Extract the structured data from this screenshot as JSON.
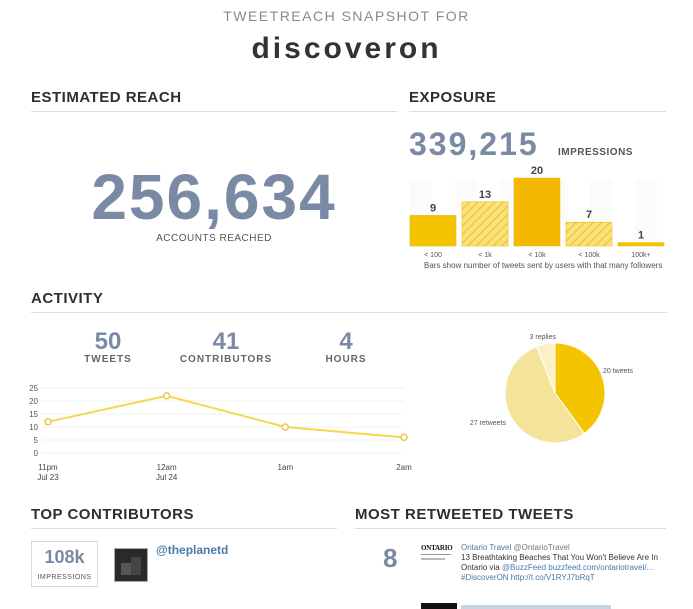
{
  "header": {
    "kicker": "TWEETREACH SNAPSHOT FOR",
    "title": "discoveron"
  },
  "reach": {
    "heading": "ESTIMATED REACH",
    "value": "256,634",
    "label": "ACCOUNTS REACHED"
  },
  "exposure": {
    "heading": "EXPOSURE",
    "value": "339,215",
    "label": "IMPRESSIONS",
    "caption": "Bars show number of tweets sent by users with that many followers"
  },
  "activity": {
    "heading": "ACTIVITY",
    "tweets": {
      "value": "50",
      "label": "TWEETS"
    },
    "contributors": {
      "value": "41",
      "label": "CONTRIBUTORS"
    },
    "hours": {
      "value": "4",
      "label": "HOURS"
    }
  },
  "top_contributors": {
    "heading": "TOP CONTRIBUTORS",
    "items": [
      {
        "impressions": "108k",
        "impressions_label": "IMPRESSIONS",
        "handle": "@theplanetd"
      }
    ]
  },
  "most_retweeted": {
    "heading": "MOST RETWEETED TWEETS",
    "items": [
      {
        "count": "8",
        "logo_text": "ONTARIO",
        "author": "Ontario Travel",
        "handle": "@OntarioTravel",
        "line1": "13 Breathtaking Beaches That You Won't Believe Are In",
        "line2_prefix": "Ontario via ",
        "line2_mention": "@BuzzFeed",
        "line2_link": " buzzfeed.com/ontariotravel/...",
        "line3_hashtag": "#DiscoverON",
        "line3_link": " http://t.co/V1RYJ7bRqT"
      }
    ]
  },
  "colors": {
    "accent_number": "#7a8aa5",
    "bar_yellow": "#f5c400",
    "line_yellow": "#f6d651",
    "pie_light": "#f6e39a"
  },
  "chart_data": [
    {
      "type": "bar",
      "categories": [
        "< 100",
        "< 1k",
        "< 10k",
        "< 100k",
        "100k+"
      ],
      "values": [
        9,
        13,
        20,
        7,
        1
      ],
      "xlabel": "Bars show number of tweets sent by users with that many followers",
      "ylabel": "",
      "ylim": [
        0,
        20
      ],
      "grid": false
    },
    {
      "type": "line",
      "x": [
        "11pm",
        "12am",
        "1am",
        "2am"
      ],
      "x_sublabels": [
        "Jul 23",
        "Jul 24",
        "",
        ""
      ],
      "values": [
        12,
        22,
        10,
        6
      ],
      "y_ticks": [
        0,
        5,
        10,
        15,
        20,
        25
      ],
      "ylim": [
        0,
        25
      ],
      "grid": true
    },
    {
      "type": "pie",
      "labels": [
        "20 tweets",
        "27 retweets",
        "3 replies"
      ],
      "values": [
        20,
        27,
        3
      ]
    }
  ]
}
